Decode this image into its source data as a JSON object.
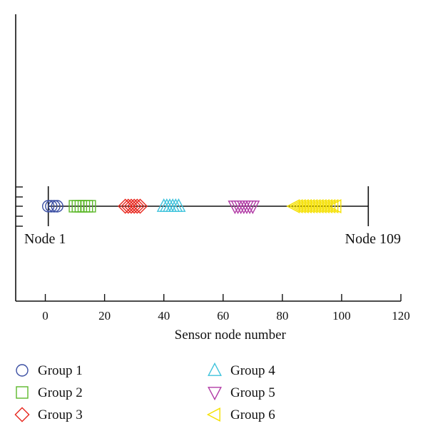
{
  "chart_data": {
    "type": "scatter",
    "xlabel": "Sensor node number",
    "xlim": [
      -10,
      120
    ],
    "xticks": [
      0,
      20,
      40,
      60,
      80,
      100,
      120
    ],
    "line": {
      "x_start": 1,
      "x_end": 109
    },
    "annotations": [
      {
        "text": "Node 1",
        "x": 1
      },
      {
        "text": "Node 109",
        "x": 109
      }
    ],
    "series": [
      {
        "name": "Group 1",
        "marker": "circle",
        "color": "#3b4fa3",
        "x": [
          1,
          2,
          3,
          4
        ]
      },
      {
        "name": "Group 2",
        "marker": "square",
        "color": "#5cb82a",
        "x": [
          10,
          11,
          12,
          13,
          14,
          15
        ]
      },
      {
        "name": "Group 3",
        "marker": "diamond",
        "color": "#e8271e",
        "x": [
          27,
          28,
          29,
          30,
          31,
          32
        ]
      },
      {
        "name": "Group 4",
        "marker": "triangle-up",
        "color": "#3fc3dc",
        "x": [
          40,
          41,
          42,
          43,
          44,
          45
        ]
      },
      {
        "name": "Group 5",
        "marker": "triangle-down",
        "color": "#b23ba6",
        "x": [
          64,
          65,
          66,
          67,
          68,
          69,
          70
        ]
      },
      {
        "name": "Group 6",
        "marker": "triangle-left",
        "color": "#f5e000",
        "x": [
          84,
          85,
          86,
          87,
          88,
          89,
          90,
          91,
          92,
          93,
          94,
          95,
          96,
          97,
          98
        ]
      }
    ],
    "legend_position": "bottom"
  }
}
